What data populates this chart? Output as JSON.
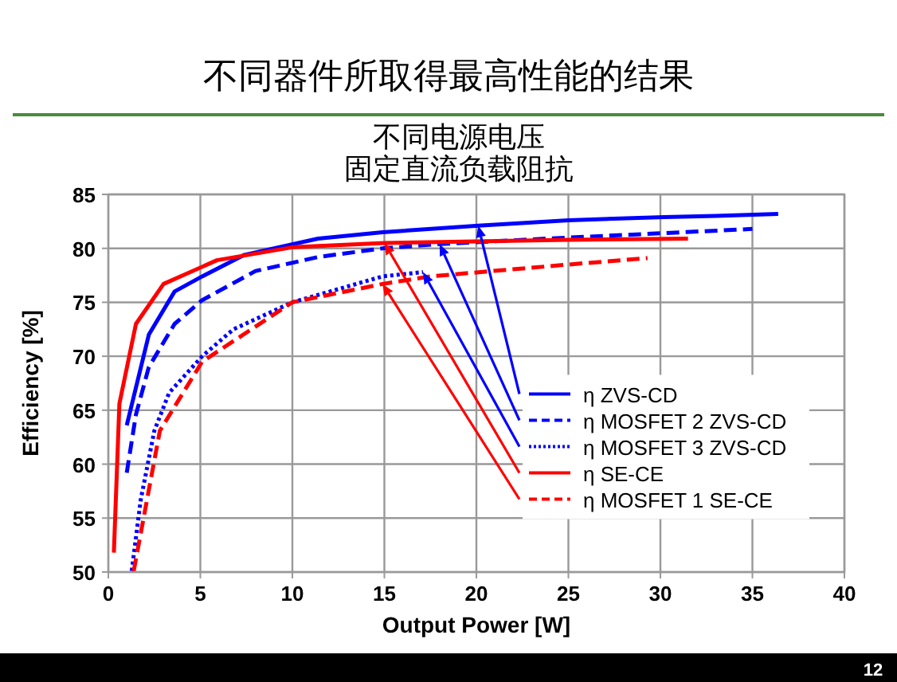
{
  "chart_data": {
    "type": "line",
    "title": "不同器件所取得最高性能的结果",
    "subtitle": [
      "不同电源电压",
      "固定直流负载阻抗"
    ],
    "xlabel": "Output Power [W]",
    "ylabel": "Efficiency [%]",
    "xlim": [
      0,
      40
    ],
    "ylim": [
      50,
      85
    ],
    "xticks": [
      0,
      5,
      10,
      15,
      20,
      25,
      30,
      35,
      40
    ],
    "yticks": [
      50,
      55,
      60,
      65,
      70,
      75,
      80,
      85
    ],
    "grid": true,
    "legend": "right",
    "series": [
      {
        "name": "η ZVS-CD",
        "color": "#0000ff",
        "line_style": "solid",
        "x": [
          1.0,
          2.2,
          3.6,
          5.1,
          7.4,
          11.4,
          14.9,
          20.1,
          25,
          30.2,
          33,
          36.4
        ],
        "values": [
          63.6,
          72,
          76,
          77.4,
          79.4,
          80.9,
          81.5,
          82.1,
          82.6,
          82.9,
          83,
          83.2
        ]
      },
      {
        "name": "η MOSFET 2 ZVS-CD",
        "color": "#0000ff",
        "line_style": "dashed",
        "x": [
          1.0,
          1.5,
          2.2,
          3.6,
          5.1,
          8,
          11.4,
          14.9,
          18,
          25,
          30,
          35
        ],
        "values": [
          59.2,
          64.6,
          69,
          73,
          75.2,
          77.9,
          79.2,
          80,
          80.4,
          81,
          81.4,
          81.8
        ]
      },
      {
        "name": "η MOSFET 3 ZVS-CD",
        "color": "#0000ff",
        "line_style": "dotted",
        "x": [
          1.27,
          1.76,
          2.5,
          3.3,
          5.1,
          6.8,
          10,
          14.9,
          17.1
        ],
        "values": [
          50.1,
          56.7,
          63.1,
          66.6,
          70,
          72.5,
          75,
          77.4,
          77.8
        ]
      },
      {
        "name": "η SE-CE",
        "color": "#ff0000",
        "line_style": "solid",
        "x": [
          0.3,
          0.6,
          1.5,
          3,
          5.9,
          10,
          15,
          25,
          31.5
        ],
        "values": [
          51.8,
          65.6,
          73,
          76.7,
          78.9,
          80.1,
          80.5,
          80.8,
          80.9
        ]
      },
      {
        "name": "η MOSFET 1 SE-CE",
        "color": "#ff0000",
        "line_style": "dashed",
        "x": [
          1.38,
          2.8,
          5.1,
          10,
          14.9,
          17.5,
          25,
          29.3
        ],
        "values": [
          50.1,
          63.1,
          69.5,
          75,
          76.7,
          77.4,
          78.5,
          79.1
        ]
      }
    ],
    "annotations": [
      "12"
    ]
  }
}
